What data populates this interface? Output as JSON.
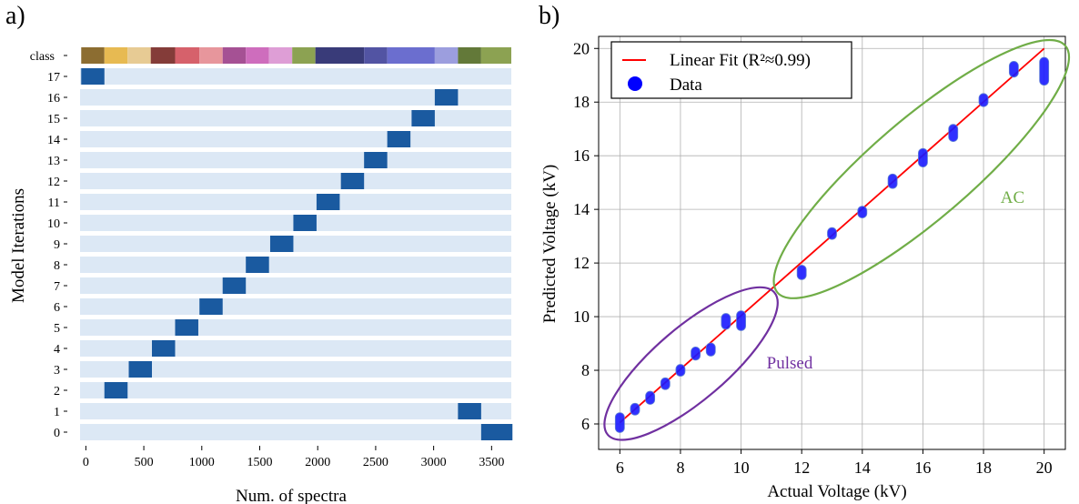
{
  "panels": {
    "a": "a)",
    "b": "b)"
  },
  "chart_data": [
    {
      "type": "heatmap",
      "xlabel": "Num. of spectra",
      "ylabel": "Model Iterations",
      "xlim": [
        -50,
        3670
      ],
      "xticks": [
        "0",
        "500",
        "1000",
        "1500",
        "2000",
        "2500",
        "3000",
        "3500"
      ],
      "xtick_values": [
        0,
        500,
        1000,
        1500,
        2000,
        2500,
        3000,
        3500
      ],
      "class_row_label": "class",
      "rows": [
        "17",
        "16",
        "15",
        "14",
        "13",
        "12",
        "11",
        "10",
        "9",
        "8",
        "7",
        "6",
        "5",
        "4",
        "3",
        "2",
        "1",
        "0"
      ],
      "class_segments": [
        {
          "start": -40,
          "end": 160,
          "color": "#8c6d31"
        },
        {
          "start": 160,
          "end": 360,
          "color": "#e7ba52"
        },
        {
          "start": 360,
          "end": 560,
          "color": "#e7cb94"
        },
        {
          "start": 560,
          "end": 770,
          "color": "#843c39"
        },
        {
          "start": 770,
          "end": 980,
          "color": "#d6616b"
        },
        {
          "start": 980,
          "end": 1180,
          "color": "#e7969c"
        },
        {
          "start": 1180,
          "end": 1380,
          "color": "#a55194"
        },
        {
          "start": 1380,
          "end": 1580,
          "color": "#ce6dbd"
        },
        {
          "start": 1580,
          "end": 1780,
          "color": "#de9ed6"
        },
        {
          "start": 1780,
          "end": 1980,
          "color": "#8ca252"
        },
        {
          "start": 1980,
          "end": 2400,
          "color": "#393b79"
        },
        {
          "start": 2400,
          "end": 2600,
          "color": "#5254a3"
        },
        {
          "start": 2600,
          "end": 3010,
          "color": "#6b6ecf"
        },
        {
          "start": 3010,
          "end": 3210,
          "color": "#9c9ede"
        },
        {
          "start": 3210,
          "end": 3410,
          "color": "#637939"
        },
        {
          "start": 3410,
          "end": 3670,
          "color": "#8ca252"
        }
      ],
      "background_color": "#dce8f5",
      "highlight_color": "#1a5aa0",
      "highlight_blocks": [
        {
          "row": "17",
          "start": -40,
          "end": 160
        },
        {
          "row": "16",
          "start": 3010,
          "end": 3210
        },
        {
          "row": "15",
          "start": 2810,
          "end": 3010
        },
        {
          "row": "14",
          "start": 2600,
          "end": 2800
        },
        {
          "row": "13",
          "start": 2400,
          "end": 2600
        },
        {
          "row": "12",
          "start": 2200,
          "end": 2400
        },
        {
          "row": "11",
          "start": 1990,
          "end": 2190
        },
        {
          "row": "10",
          "start": 1790,
          "end": 1990
        },
        {
          "row": "9",
          "start": 1590,
          "end": 1790
        },
        {
          "row": "8",
          "start": 1380,
          "end": 1580
        },
        {
          "row": "7",
          "start": 1180,
          "end": 1380
        },
        {
          "row": "6",
          "start": 980,
          "end": 1180
        },
        {
          "row": "5",
          "start": 770,
          "end": 970
        },
        {
          "row": "4",
          "start": 570,
          "end": 770
        },
        {
          "row": "3",
          "start": 370,
          "end": 570
        },
        {
          "row": "2",
          "start": 160,
          "end": 360
        },
        {
          "row": "1",
          "start": 3210,
          "end": 3410
        },
        {
          "row": "0",
          "start": 3410,
          "end": 3680
        }
      ]
    },
    {
      "type": "scatter",
      "xlabel": "Actual Voltage (kV)",
      "ylabel": "Predicted Voltage (kV)",
      "xlim": [
        5.3,
        20.7
      ],
      "ylim": [
        5.05,
        20.45
      ],
      "xticks": [
        "6",
        "8",
        "10",
        "12",
        "14",
        "16",
        "18",
        "20"
      ],
      "xtick_values": [
        6,
        8,
        10,
        12,
        14,
        16,
        18,
        20
      ],
      "yticks": [
        "6",
        "8",
        "10",
        "12",
        "14",
        "16",
        "18",
        "20"
      ],
      "ytick_values": [
        6,
        8,
        10,
        12,
        14,
        16,
        18,
        20
      ],
      "grid": true,
      "legend": {
        "position": "top-left",
        "entries": [
          {
            "label": "Linear Fit (R²≈0.99)",
            "marker": "line",
            "color": "#ff0000"
          },
          {
            "label": "Data",
            "marker": "dot",
            "color": "#0000ff"
          }
        ]
      },
      "fit_line": {
        "x": [
          6,
          20
        ],
        "y": [
          6.05,
          20.0
        ],
        "color": "#ff0000"
      },
      "series": [
        {
          "name": "Data",
          "color": "#1a1aff",
          "points": [
            {
              "x": 6,
              "y_min": 5.85,
              "y_max": 6.25
            },
            {
              "x": 6.5,
              "y_min": 6.5,
              "y_max": 6.6
            },
            {
              "x": 7,
              "y_min": 6.9,
              "y_max": 7.05
            },
            {
              "x": 7.5,
              "y_min": 7.45,
              "y_max": 7.55
            },
            {
              "x": 8,
              "y_min": 7.95,
              "y_max": 8.05
            },
            {
              "x": 8.5,
              "y_min": 8.55,
              "y_max": 8.7
            },
            {
              "x": 9,
              "y_min": 8.7,
              "y_max": 8.85
            },
            {
              "x": 9.5,
              "y_min": 9.7,
              "y_max": 9.95
            },
            {
              "x": 10,
              "y_min": 9.65,
              "y_max": 10.05
            },
            {
              "x": 12,
              "y_min": 11.55,
              "y_max": 11.75
            },
            {
              "x": 13,
              "y_min": 13.05,
              "y_max": 13.15
            },
            {
              "x": 14,
              "y_min": 13.85,
              "y_max": 13.95
            },
            {
              "x": 15,
              "y_min": 14.95,
              "y_max": 15.15
            },
            {
              "x": 16,
              "y_min": 15.75,
              "y_max": 16.1
            },
            {
              "x": 17,
              "y_min": 16.7,
              "y_max": 17.0
            },
            {
              "x": 18,
              "y_min": 18.0,
              "y_max": 18.15
            },
            {
              "x": 19,
              "y_min": 19.1,
              "y_max": 19.35
            },
            {
              "x": 20,
              "y_min": 18.8,
              "y_max": 19.5
            }
          ]
        }
      ],
      "annotations": [
        {
          "text": "Pulsed",
          "color": "#7030a0",
          "ellipse_color": "#7030a0",
          "ellipse": {
            "x1": 5.6,
            "y1": 5.6,
            "x2": 11.1,
            "y2": 10.9
          }
        },
        {
          "text": "AC",
          "color": "#70ad47",
          "ellipse_color": "#70ad47",
          "ellipse": {
            "x1": 11.2,
            "y1": 10.9,
            "x2": 20.7,
            "y2": 20.1
          }
        }
      ]
    }
  ]
}
